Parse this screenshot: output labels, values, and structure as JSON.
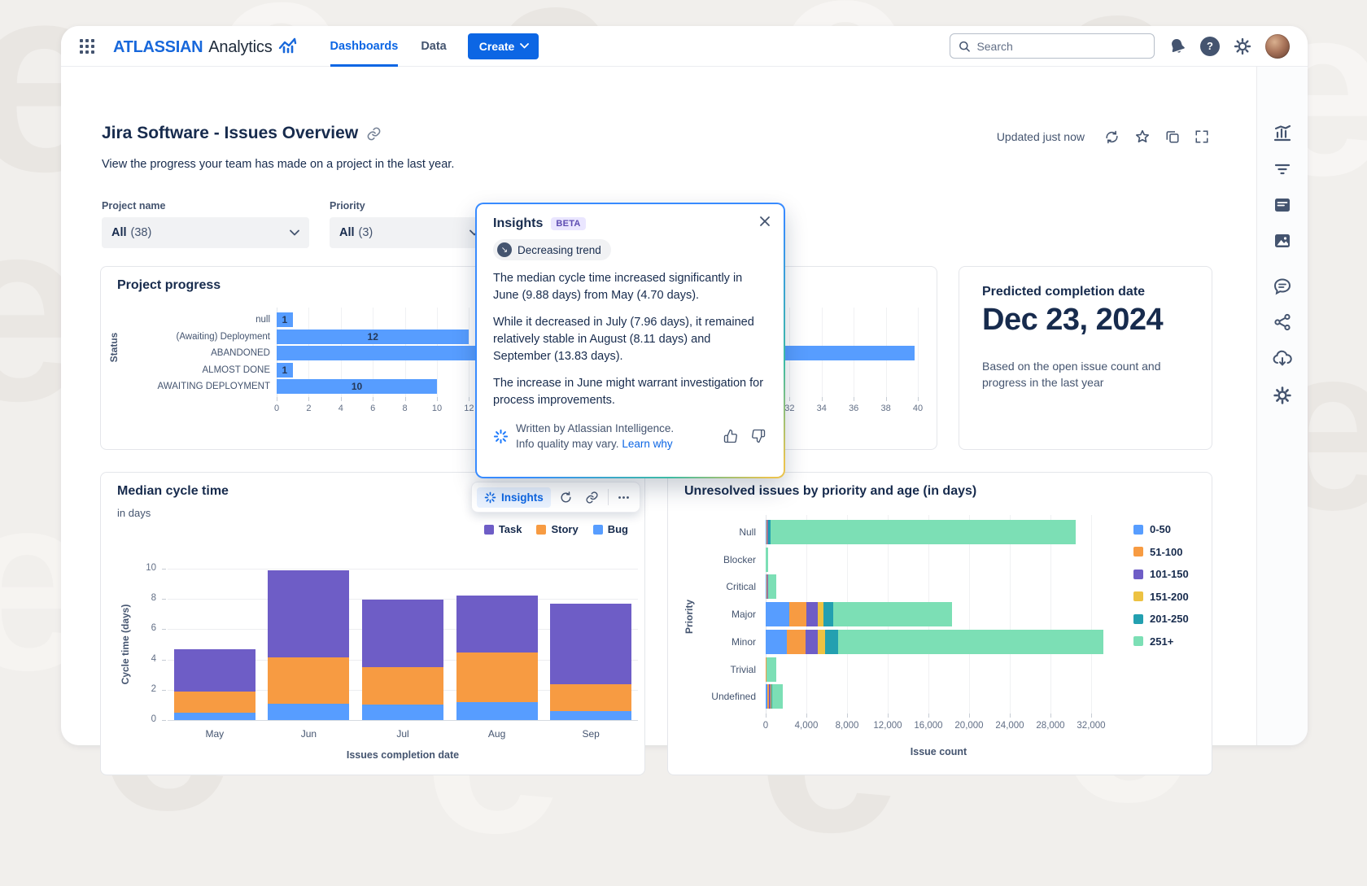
{
  "page": {
    "watermark_letter": "e"
  },
  "header": {
    "logo_primary": "ATLASSIAN",
    "logo_secondary": "Analytics",
    "nav": [
      {
        "label": "Dashboards"
      },
      {
        "label": "Data"
      }
    ],
    "create_label": "Create",
    "search_placeholder": "Search"
  },
  "page_header": {
    "title": "Jira Software - Issues Overview",
    "subtitle": "View the progress your team has made on a project in the last year.",
    "updated": "Updated just now"
  },
  "filters": [
    {
      "label": "Project name",
      "value": "All",
      "count": "(38)"
    },
    {
      "label": "Priority",
      "value": "All",
      "count": "(3)"
    }
  ],
  "insights_panel": {
    "title": "Insights",
    "beta": "BETA",
    "trend_badge": "Decreasing trend",
    "paragraphs": [
      "The median cycle time increased significantly in June (9.88 days) from May (4.70 days).",
      "While it decreased in July (7.96 days), it remained relatively stable in August (8.11 days) and September (13.83 days).",
      "The increase in June might warrant investigation for process improvements."
    ],
    "footer_line1": "Written by Atlassian Intelligence.",
    "footer_line2": "Info quality may vary.",
    "footer_link": "Learn why"
  },
  "insights_toolbar": {
    "label": "Insights"
  },
  "predicted_card": {
    "title": "Predicted completion date",
    "date": "Dec 23, 2024",
    "description": "Based on the open issue count and progress in the last year"
  },
  "colors": {
    "accent_blue": "#0C66E4",
    "bar_blue": "#579DFF",
    "purple": "#6E5DC6",
    "orange": "#F79B42",
    "yellow": "#EDC242",
    "teal": "#23A0B0",
    "mint": "#7CDFB5"
  },
  "chart_data": [
    {
      "type": "bar",
      "orientation": "horizontal",
      "title": "Project progress",
      "ylabel": "Status",
      "categories": [
        "null",
        "(Awaiting) Deployment",
        "ABANDONED",
        "ALMOST DONE",
        "AWAITING DEPLOYMENT"
      ],
      "values": [
        1,
        12,
        39.8,
        1,
        10
      ],
      "bar_labels": [
        "1",
        "12",
        "",
        "1",
        "10"
      ],
      "xlim": [
        0,
        40
      ],
      "xtick_step": 2,
      "bar_color": "#579DFF",
      "grid": true
    },
    {
      "type": "bar",
      "stacked": true,
      "orientation": "vertical",
      "title": "Median cycle time",
      "subtitle": "in days",
      "xlabel": "Issues completion date",
      "ylabel": "Cycle time (days)",
      "categories": [
        "May",
        "Jun",
        "Jul",
        "Aug",
        "Sep"
      ],
      "series": [
        {
          "name": "Task",
          "color": "#6E5DC6",
          "values": [
            2.8,
            5.73,
            4.45,
            3.8,
            5.35
          ]
        },
        {
          "name": "Story",
          "color": "#F79B42",
          "values": [
            1.4,
            3.1,
            2.5,
            3.25,
            1.75
          ]
        },
        {
          "name": "Bug",
          "color": "#579DFF",
          "values": [
            0.5,
            1.05,
            1.0,
            1.2,
            0.6
          ]
        }
      ],
      "stack_order_bottom_to_top": [
        "Bug",
        "Story",
        "Task"
      ],
      "ylim": [
        0,
        10
      ],
      "ytick_step": 2,
      "legend_position": "top-right",
      "grid": true
    },
    {
      "type": "bar",
      "stacked": true,
      "orientation": "horizontal",
      "title": "Unresolved issues by priority and age (in days)",
      "xlabel": "Issue count",
      "ylabel": "Priority",
      "categories": [
        "Null",
        "Blocker",
        "Critical",
        "Major",
        "Minor",
        "Trivial",
        "Undefined"
      ],
      "series": [
        {
          "name": "0-50",
          "color": "#579DFF",
          "values": [
            100,
            0,
            80,
            2300,
            2100,
            0,
            180
          ]
        },
        {
          "name": "51-100",
          "color": "#F79B42",
          "values": [
            60,
            0,
            70,
            1700,
            1800,
            80,
            160
          ]
        },
        {
          "name": "101-150",
          "color": "#6E5DC6",
          "values": [
            60,
            0,
            60,
            1100,
            1200,
            0,
            140
          ]
        },
        {
          "name": "151-200",
          "color": "#EDC242",
          "values": [
            40,
            0,
            0,
            600,
            700,
            0,
            100
          ]
        },
        {
          "name": "201-250",
          "color": "#23A0B0",
          "values": [
            240,
            0,
            0,
            900,
            1300,
            0,
            60
          ]
        },
        {
          "name": "251+",
          "color": "#7CDFB5",
          "values": [
            30000,
            200,
            800,
            11700,
            26100,
            920,
            1060
          ]
        }
      ],
      "xticks": [
        0,
        4000,
        8000,
        12000,
        16000,
        20000,
        24000,
        28000,
        32000
      ],
      "xlim": [
        0,
        34000
      ],
      "legend_position": "right",
      "grid": true
    }
  ]
}
